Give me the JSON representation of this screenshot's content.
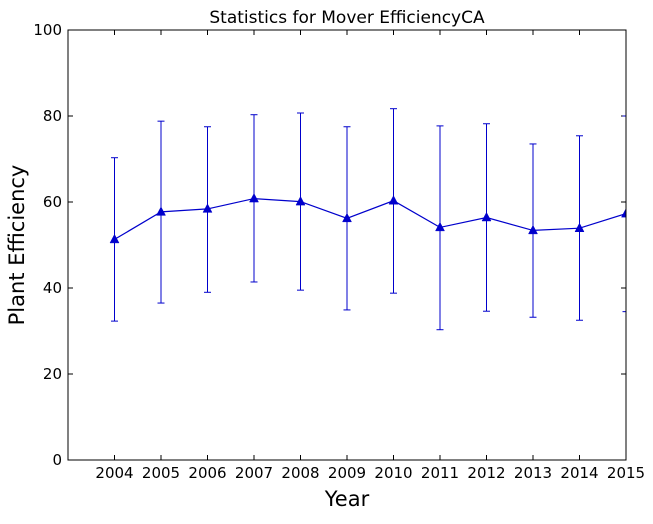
{
  "chart_data": {
    "type": "line",
    "title": "Statistics for Mover EfficiencyCA",
    "xlabel": "Year",
    "ylabel": "Plant Efficiency",
    "xlim": [
      2003,
      2015
    ],
    "ylim": [
      0,
      100
    ],
    "x_ticks": [
      "2004",
      "2005",
      "2006",
      "2007",
      "2008",
      "2009",
      "2010",
      "2011",
      "2012",
      "2013",
      "2014",
      "2015"
    ],
    "y_ticks": [
      "0",
      "20",
      "40",
      "60",
      "80",
      "100"
    ],
    "grid": false,
    "series": [
      {
        "marker": "triangle",
        "color": "#0000cc",
        "x": [
          2004,
          2005,
          2006,
          2007,
          2008,
          2009,
          2010,
          2011,
          2012,
          2013,
          2014,
          2015
        ],
        "y": [
          51.3,
          57.7,
          58.4,
          60.8,
          60.1,
          56.2,
          60.3,
          54.1,
          56.4,
          53.4,
          53.9,
          57.3
        ],
        "err_low": [
          32.3,
          36.5,
          39.0,
          41.4,
          39.5,
          34.9,
          38.8,
          30.3,
          34.6,
          33.2,
          32.5,
          34.5
        ],
        "err_high": [
          70.3,
          78.8,
          77.5,
          80.3,
          80.7,
          77.5,
          81.7,
          77.7,
          78.2,
          73.5,
          75.4,
          80.0
        ]
      }
    ]
  }
}
